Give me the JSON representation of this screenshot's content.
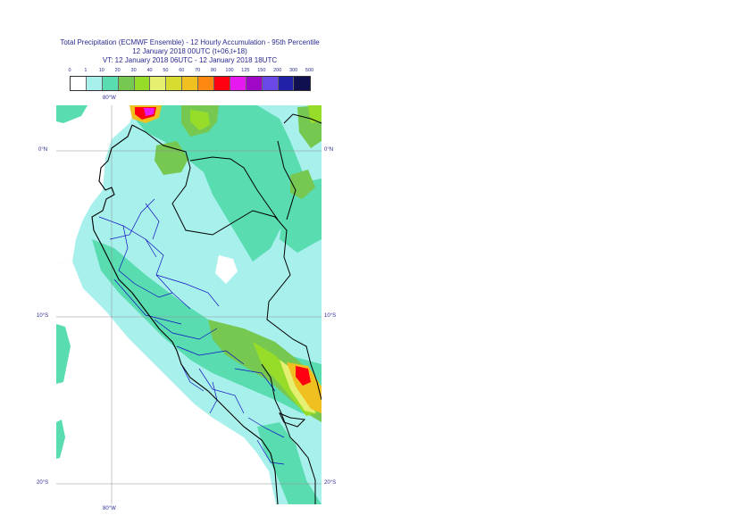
{
  "header": {
    "line1": "Total Precipitation (ECMWF Ensemble) - 12 Hourly Accumulation - 95th Percentile",
    "line2": "12 January 2018 00UTC (t+06,t+18)",
    "line3": "VT: 12 January 2018 06UTC - 12 January 2018 18UTC"
  },
  "legend": {
    "ticks": [
      "0",
      "1",
      "10",
      "20",
      "30",
      "40",
      "50",
      "60",
      "70",
      "80",
      "100",
      "125",
      "150",
      "200",
      "300",
      "500"
    ],
    "colors": [
      "#ffffff",
      "#a8f0ec",
      "#58dcb0",
      "#76c850",
      "#98dc2a",
      "#e6f070",
      "#d8dc30",
      "#f0c020",
      "#ff8810",
      "#ff0010",
      "#e818f0",
      "#a008c8",
      "#6a48e8",
      "#2020a8",
      "#101050"
    ]
  },
  "map": {
    "lon_label_top": "80°W",
    "lon_label_bottom": "80°W",
    "lat_labels_left": [
      "0°N",
      "10°S",
      "20°S"
    ],
    "lat_labels_right": [
      "0°N",
      "10°S",
      "20°S"
    ],
    "colors": {
      "background": "#a8f0ec",
      "light": "#ffffff",
      "band1": "#58dcb0",
      "band2": "#76c850",
      "band3": "#98dc2a",
      "band4": "#e6f070",
      "band5": "#f0c020",
      "band6": "#ff0010",
      "band7": "#e818f0",
      "coast": "#000000",
      "admin": "#1010c0",
      "grid": "#909090"
    }
  }
}
